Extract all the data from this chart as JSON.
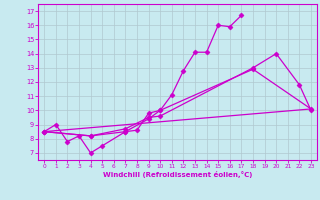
{
  "xlabel": "Windchill (Refroidissement éolien,°C)",
  "bg_color": "#c8eaf0",
  "line_color": "#cc00cc",
  "grid_color": "#b0c8d0",
  "xlim": [
    -0.5,
    23.5
  ],
  "ylim": [
    6.5,
    17.5
  ],
  "yticks": [
    7,
    8,
    9,
    10,
    11,
    12,
    13,
    14,
    15,
    16,
    17
  ],
  "xticks": [
    0,
    1,
    2,
    3,
    4,
    5,
    6,
    7,
    8,
    9,
    10,
    11,
    12,
    13,
    14,
    15,
    16,
    17,
    18,
    19,
    20,
    21,
    22,
    23
  ],
  "series": [
    {
      "x": [
        0,
        1,
        2,
        3,
        4,
        5,
        7,
        8,
        9,
        10,
        11,
        12,
        13,
        14,
        15,
        16,
        17
      ],
      "y": [
        8.5,
        9.0,
        7.8,
        8.2,
        7.0,
        7.5,
        8.5,
        8.6,
        9.8,
        10.0,
        11.1,
        12.8,
        14.1,
        14.1,
        16.0,
        15.9,
        16.7
      ],
      "marker": "D",
      "markersize": 2.5,
      "lw": 0.9
    },
    {
      "x": [
        0,
        4,
        7,
        9,
        10,
        18,
        20,
        22,
        23
      ],
      "y": [
        8.5,
        8.2,
        8.7,
        9.5,
        9.6,
        13.0,
        14.0,
        11.8,
        10.0
      ],
      "marker": "D",
      "markersize": 2.5,
      "lw": 0.9
    },
    {
      "x": [
        0,
        4,
        7,
        9,
        10,
        18,
        23
      ],
      "y": [
        8.5,
        8.2,
        8.5,
        9.4,
        10.0,
        12.9,
        10.1
      ],
      "marker": "D",
      "markersize": 2.5,
      "lw": 0.9
    },
    {
      "x": [
        0,
        23
      ],
      "y": [
        8.5,
        10.1
      ],
      "marker": null,
      "markersize": 0,
      "lw": 0.9
    }
  ]
}
